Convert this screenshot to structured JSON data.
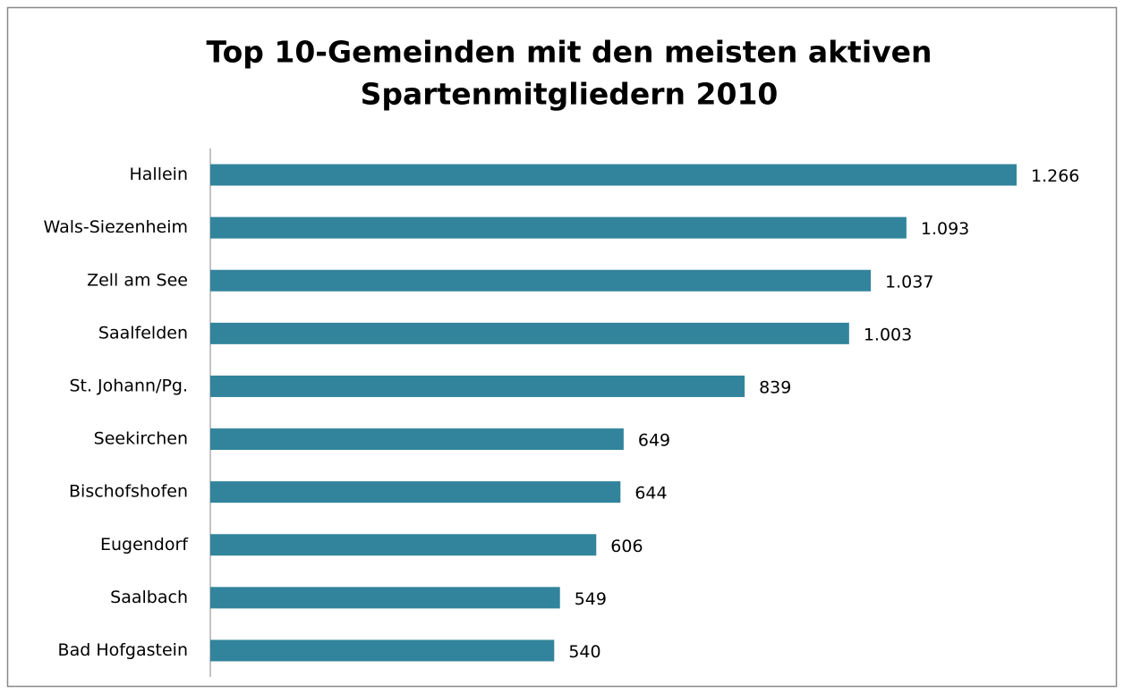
{
  "chart_data": {
    "type": "bar",
    "orientation": "horizontal",
    "title": [
      "Top 10-Gemeinden mit den meisten aktiven",
      "Spartenmitgliedern 2010"
    ],
    "categories": [
      "Hallein",
      "Wals-Siezenheim",
      "Zell am See",
      "Saalfelden",
      "St. Johann/Pg.",
      "Seekirchen",
      "Bischofshofen",
      "Eugendorf",
      "Saalbach",
      "Bad Hofgastein"
    ],
    "values": [
      1266,
      1093,
      1037,
      1003,
      839,
      649,
      644,
      606,
      549,
      540
    ],
    "value_labels": [
      "1.266",
      "1.093",
      "1.037",
      "1.003",
      "839",
      "649",
      "644",
      "606",
      "549",
      "540"
    ],
    "color": "#31849b"
  }
}
